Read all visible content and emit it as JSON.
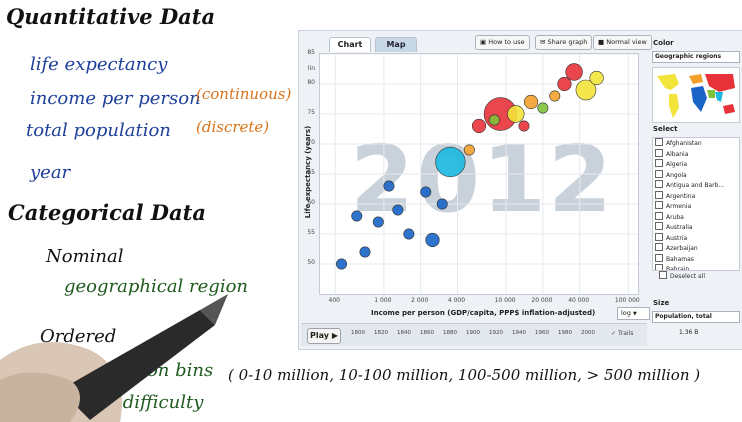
{
  "notes": {
    "quant_title": "Quantitative Data",
    "quant_items": [
      "life expectancy",
      "income per person",
      "total population",
      "year"
    ],
    "continuous": "(continuous)",
    "discrete": "(discrete)",
    "cat_title": "Categorical Data",
    "nominal": "Nominal",
    "geo": "geographical region",
    "ordered": "Ordered",
    "bins": "population bins",
    "bins_values": "( 0-10 million, 10-100 million, 100-500 million, > 500 million )",
    "difficulty": "class difficulty"
  },
  "app": {
    "tabs": [
      "Chart",
      "Map"
    ],
    "buttons": [
      "How to use",
      "Share graph",
      "Normal view"
    ],
    "year_watermark": "2012",
    "y_axis_label": "Life expectancy (years)",
    "y_scale": "lin",
    "x_axis_label": "Income per person (GDP/capita, PPP$ inflation-adjusted)",
    "x_scale": "log",
    "play_label": "Play",
    "trails_label": "Trails",
    "timeline_years": [
      "1800",
      "1820",
      "1840",
      "1860",
      "1880",
      "1900",
      "1920",
      "1940",
      "1960",
      "1980",
      "2000"
    ],
    "color_heading": "Color",
    "color_value": "Geographic regions",
    "select_heading": "Select",
    "countries": [
      "Afghanistan",
      "Albania",
      "Algeria",
      "Angola",
      "Antigua and Barb...",
      "Argentina",
      "Armenia",
      "Aruba",
      "Australia",
      "Austria",
      "Azerbaijan",
      "Bahamas",
      "Bahrain"
    ],
    "deselect_label": "Deselect all",
    "size_heading": "Size",
    "size_value": "Population, total",
    "size_reading": "1.36 B",
    "colors": {
      "americas": "#f3e43a",
      "europe": "#f4a12c",
      "asia": "#e8323a",
      "africa": "#1a64c8",
      "east_asia": "#e8323a",
      "middle_east": "#7ec23a",
      "south_asia": "#1ab8e0"
    }
  },
  "chart_data": {
    "type": "scatter",
    "xlabel": "Income per person (GDP/capita, PPP$ inflation-adjusted)",
    "ylabel": "Life expectancy (years)",
    "x_scale": "log",
    "x_ticks": [
      400,
      1000,
      2000,
      4000,
      10000,
      20000,
      40000,
      100000
    ],
    "x_tick_labels": [
      "400",
      "1 000",
      "2 000",
      "4 000",
      "10 000",
      "20 000",
      "40 000",
      "100 000"
    ],
    "ylim": [
      45,
      85
    ],
    "y_ticks": [
      50,
      55,
      60,
      65,
      70,
      75,
      80,
      85
    ],
    "points": [
      {
        "x": 9000,
        "y": 75,
        "size": 9,
        "color": "#e8323a"
      },
      {
        "x": 3500,
        "y": 67,
        "size": 8,
        "color": "#1ab8e0"
      },
      {
        "x": 45000,
        "y": 79,
        "size": 5,
        "color": "#f3e43a"
      },
      {
        "x": 12000,
        "y": 75,
        "size": 4,
        "color": "#f3e43a"
      },
      {
        "x": 36000,
        "y": 82,
        "size": 4,
        "color": "#e8323a"
      },
      {
        "x": 16000,
        "y": 77,
        "size": 3,
        "color": "#f4a12c"
      },
      {
        "x": 55000,
        "y": 81,
        "size": 3,
        "color": "#f3e43a"
      },
      {
        "x": 30000,
        "y": 80,
        "size": 3,
        "color": "#e8323a"
      },
      {
        "x": 6000,
        "y": 73,
        "size": 3,
        "color": "#e8323a"
      },
      {
        "x": 1100,
        "y": 63,
        "size": 2,
        "color": "#1a64c8"
      },
      {
        "x": 2200,
        "y": 62,
        "size": 2,
        "color": "#1a64c8"
      },
      {
        "x": 900,
        "y": 57,
        "size": 2,
        "color": "#1a64c8"
      },
      {
        "x": 1600,
        "y": 55,
        "size": 2,
        "color": "#1a64c8"
      },
      {
        "x": 700,
        "y": 52,
        "size": 2,
        "color": "#1a64c8"
      },
      {
        "x": 450,
        "y": 50,
        "size": 2,
        "color": "#1a64c8"
      },
      {
        "x": 2500,
        "y": 54,
        "size": 3,
        "color": "#1a64c8"
      },
      {
        "x": 5000,
        "y": 69,
        "size": 2,
        "color": "#f4a12c"
      },
      {
        "x": 8000,
        "y": 74,
        "size": 2,
        "color": "#7ec23a"
      },
      {
        "x": 20000,
        "y": 76,
        "size": 2,
        "color": "#7ec23a"
      },
      {
        "x": 14000,
        "y": 73,
        "size": 2,
        "color": "#e8323a"
      },
      {
        "x": 25000,
        "y": 78,
        "size": 2,
        "color": "#f4a12c"
      },
      {
        "x": 3000,
        "y": 60,
        "size": 2,
        "color": "#1a64c8"
      },
      {
        "x": 1300,
        "y": 59,
        "size": 2,
        "color": "#1a64c8"
      },
      {
        "x": 600,
        "y": 58,
        "size": 2,
        "color": "#1a64c8"
      }
    ]
  }
}
